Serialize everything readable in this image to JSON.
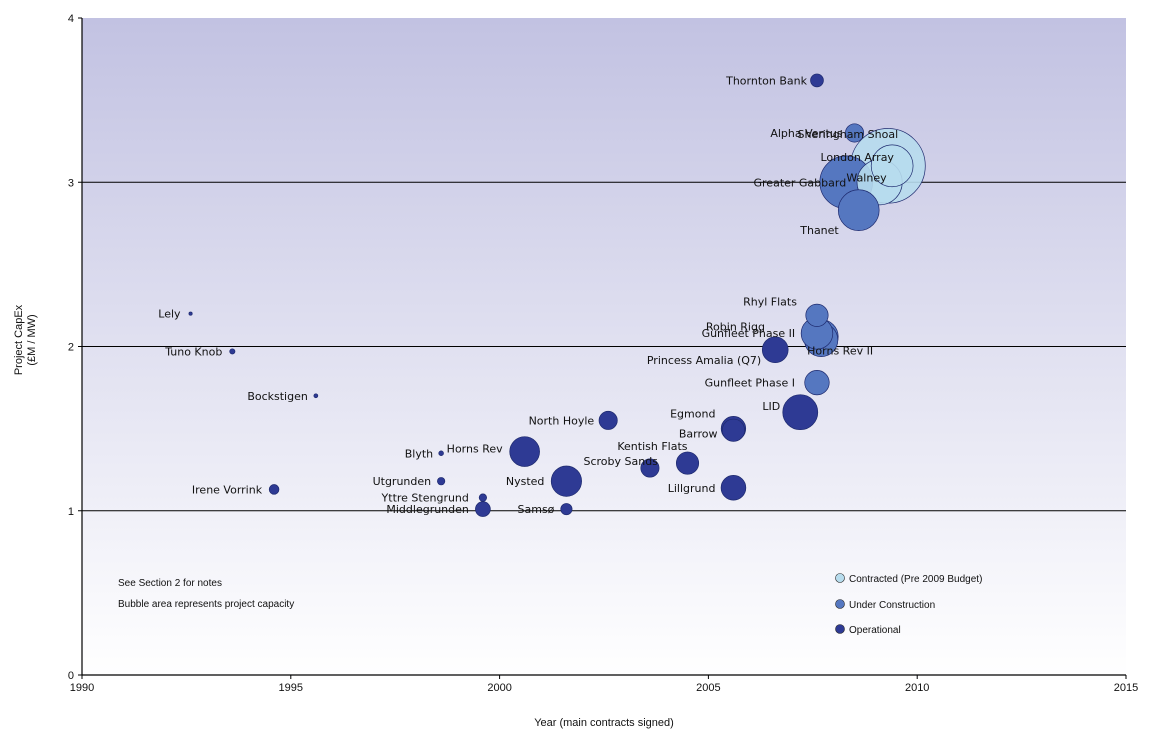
{
  "chart_data": {
    "type": "scatter",
    "title": "",
    "xlabel": "Year (main contracts signed)",
    "ylabel": "Project CapEx",
    "ylabel_line2": "(£M / MW)",
    "xlim": [
      1990,
      2015
    ],
    "ylim": [
      0,
      4
    ],
    "x_ticks": [
      1990,
      1995,
      2000,
      2005,
      2010,
      2015
    ],
    "y_ticks": [
      0,
      1,
      2,
      3,
      4
    ],
    "gridlines_y": [
      1,
      2,
      3
    ],
    "notes": [
      "See Section 2 for notes",
      "Bubble area represents project capacity"
    ],
    "legend_position": "bottom-right",
    "colors": {
      "contracted": "#b7dced",
      "under_construction": "#5577c0",
      "operational": "#2e3a94",
      "bg_top": "#c4c4e4",
      "bg_bottom": "#ffffff"
    },
    "series": [
      {
        "name": "Contracted (Pre 2009 Budget)",
        "key": "contracted"
      },
      {
        "name": "Under Construction",
        "key": "under_construction"
      },
      {
        "name": "Operational",
        "key": "operational"
      }
    ],
    "points": [
      {
        "label": "Thornton Bank",
        "x": 2007.6,
        "y": 3.62,
        "size": 30,
        "status": "operational"
      },
      {
        "label": "Alpha Ventus",
        "x": 2008.5,
        "y": 3.3,
        "size": 60,
        "status": "under_construction"
      },
      {
        "label": "Sheringham Shoal",
        "x": 2009.4,
        "y": 3.1,
        "size": 315,
        "status": "contracted"
      },
      {
        "label": "London Array",
        "x": 2009.3,
        "y": 3.1,
        "size": 1000,
        "status": "contracted"
      },
      {
        "label": "Greater Gabbard",
        "x": 2008.3,
        "y": 3.0,
        "size": 500,
        "status": "under_construction"
      },
      {
        "label": "Walney",
        "x": 2009.1,
        "y": 3.0,
        "size": 367,
        "status": "contracted"
      },
      {
        "label": "Thanet",
        "x": 2008.6,
        "y": 2.83,
        "size": 300,
        "status": "under_construction"
      },
      {
        "label": "Rhyl Flats",
        "x": 2007.6,
        "y": 2.19,
        "size": 90,
        "status": "under_construction"
      },
      {
        "label": "Robin Rigg",
        "x": 2007.6,
        "y": 2.08,
        "size": 180,
        "status": "under_construction"
      },
      {
        "label": "Gunfleet Phase II",
        "x": 2007.7,
        "y": 2.04,
        "size": 200,
        "status": "under_construction"
      },
      {
        "label": "Princess Amalia (Q7)",
        "x": 2006.6,
        "y": 1.98,
        "size": 120,
        "status": "operational"
      },
      {
        "label": "Horns Rev II",
        "x": 2007.7,
        "y": 2.06,
        "size": 209,
        "status": "under_construction"
      },
      {
        "label": "Gunfleet Phase I",
        "x": 2007.6,
        "y": 1.78,
        "size": 108,
        "status": "under_construction"
      },
      {
        "label": "LID",
        "x": 2007.2,
        "y": 1.6,
        "size": 220,
        "status": "operational"
      },
      {
        "label": "Egmond",
        "x": 2005.6,
        "y": 1.5,
        "size": 108,
        "status": "operational"
      },
      {
        "label": "Barrow",
        "x": 2005.6,
        "y": 1.49,
        "size": 90,
        "status": "operational"
      },
      {
        "label": "North Hoyle",
        "x": 2002.6,
        "y": 1.55,
        "size": 60,
        "status": "operational"
      },
      {
        "label": "Kentish Flats",
        "x": 2004.5,
        "y": 1.29,
        "size": 90,
        "status": "operational"
      },
      {
        "label": "Scroby Sands",
        "x": 2003.6,
        "y": 1.26,
        "size": 60,
        "status": "operational"
      },
      {
        "label": "Lillgrund",
        "x": 2005.6,
        "y": 1.14,
        "size": 110,
        "status": "operational"
      },
      {
        "label": "Horns Rev",
        "x": 2000.6,
        "y": 1.36,
        "size": 160,
        "status": "operational"
      },
      {
        "label": "Nysted",
        "x": 2001.6,
        "y": 1.18,
        "size": 166,
        "status": "operational"
      },
      {
        "label": "Blyth",
        "x": 1998.6,
        "y": 1.35,
        "size": 4,
        "status": "operational"
      },
      {
        "label": "Utgrunden",
        "x": 1998.6,
        "y": 1.18,
        "size": 10,
        "status": "operational"
      },
      {
        "label": "Yttre Stengrund",
        "x": 1999.6,
        "y": 1.08,
        "size": 10,
        "status": "operational"
      },
      {
        "label": "Middlegrunden",
        "x": 1999.6,
        "y": 1.01,
        "size": 40,
        "status": "operational"
      },
      {
        "label": "Samsø",
        "x": 2001.6,
        "y": 1.01,
        "size": 23,
        "status": "operational"
      },
      {
        "label": "Irene Vorrink",
        "x": 1994.6,
        "y": 1.13,
        "size": 17,
        "status": "operational"
      },
      {
        "label": "Bockstigen",
        "x": 1995.6,
        "y": 1.7,
        "size": 2.8,
        "status": "operational"
      },
      {
        "label": "Tuno Knob",
        "x": 1993.6,
        "y": 1.97,
        "size": 5,
        "status": "operational"
      },
      {
        "label": "Lely",
        "x": 1992.6,
        "y": 2.2,
        "size": 2,
        "status": "operational"
      }
    ]
  }
}
